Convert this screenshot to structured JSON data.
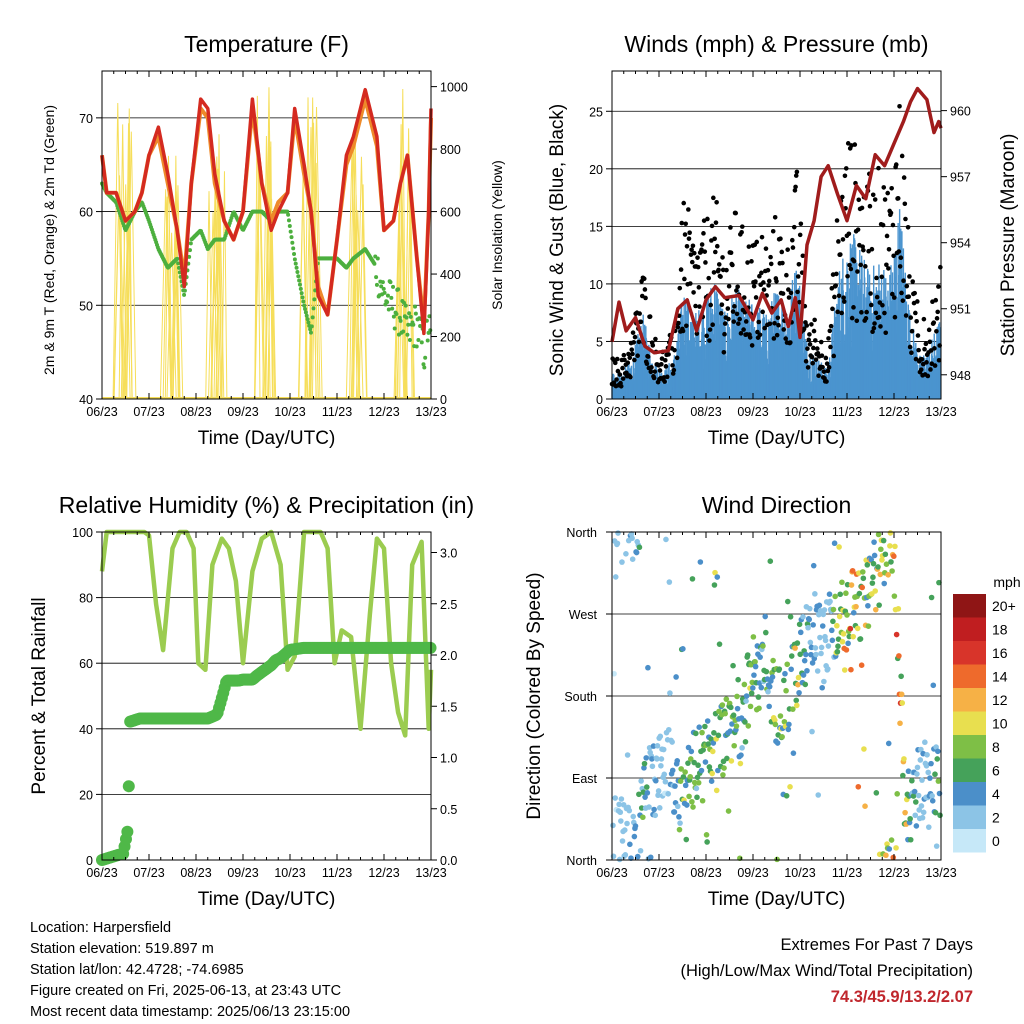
{
  "colors": {
    "temp_red": "#d42a20",
    "temp_orange": "#ee8a2a",
    "dewpoint_green": "#4caf3e",
    "insolation_yellow": "#f6de5a",
    "wind_blue": "#4b94cf",
    "gust_black": "#000000",
    "pressure_maroon": "#a01c1c",
    "rh_lightgreen": "#9bcc50",
    "precip_green": "#4fb848",
    "extremes_red": "#c0272d"
  },
  "chart_data": [
    {
      "id": "temperature",
      "type": "line",
      "title": "Temperature (F)",
      "xlabel": "Time (Day/UTC)",
      "ylabel": "2m & 9m T (Red, Orange) & 2m Td (Green)",
      "y2label": "Solar Insolation (Yellow)",
      "xticks": [
        "06/23",
        "07/23",
        "08/23",
        "09/23",
        "10/23",
        "11/23",
        "12/23",
        "13/23"
      ],
      "ylim": [
        40,
        75
      ],
      "yticks": [
        "40",
        "50",
        "60",
        "70"
      ],
      "y2lim": [
        0,
        1050
      ],
      "y2ticks": [
        "0",
        "200",
        "400",
        "600",
        "800",
        "1000"
      ],
      "x": [
        0,
        0.1,
        0.3,
        0.5,
        0.7,
        0.85,
        1.0,
        1.2,
        1.4,
        1.6,
        1.75,
        1.9,
        2.1,
        2.25,
        2.4,
        2.6,
        2.8,
        3.0,
        3.2,
        3.4,
        3.6,
        3.75,
        3.95,
        4.1,
        4.3,
        4.45,
        4.6,
        4.8,
        5.0,
        5.2,
        5.35,
        5.6,
        5.85,
        6.0,
        6.2,
        6.35,
        6.5,
        6.7,
        6.85,
        6.95,
        7.0
      ],
      "series": [
        {
          "name": "2m T",
          "values": [
            66,
            62,
            62,
            59,
            60,
            62,
            66,
            69,
            64,
            58,
            52,
            63,
            72,
            71,
            64,
            59,
            57,
            60,
            72,
            63,
            58,
            60,
            62,
            71,
            65,
            60,
            51,
            49,
            57,
            66,
            68,
            73,
            68,
            58,
            59,
            63,
            66,
            55,
            47,
            60,
            71
          ]
        },
        {
          "name": "9m T",
          "values": [
            66,
            62,
            62,
            59,
            60,
            62,
            66,
            68,
            63,
            58,
            53,
            63,
            71,
            70,
            63,
            59,
            57,
            60,
            71,
            63,
            59,
            61,
            62,
            70,
            64,
            60,
            52,
            49,
            57,
            65,
            67,
            72,
            67,
            58,
            59,
            63,
            66,
            55,
            48,
            60,
            70
          ]
        },
        {
          "name": "2m Td",
          "values": [
            63,
            62,
            61,
            58,
            60,
            61,
            59,
            56,
            54,
            55,
            51,
            57,
            58,
            56,
            57,
            57,
            60,
            58,
            60,
            60,
            59,
            60,
            60,
            55,
            50,
            47,
            55,
            55,
            55,
            54,
            55,
            56,
            54,
            51,
            50,
            49,
            47,
            48,
            45,
            48,
            45
          ]
        },
        {
          "name": "Solar Insolation",
          "axis": "y2",
          "values": [
            0,
            0,
            0,
            0,
            0,
            0,
            0,
            0,
            0,
            0,
            0,
            0,
            0,
            0,
            0,
            0,
            0,
            0,
            0,
            0,
            0,
            0,
            0,
            0,
            0,
            0,
            0,
            0,
            0,
            0,
            0,
            0,
            0,
            0,
            0,
            0,
            0,
            0,
            0,
            0,
            0
          ]
        }
      ],
      "insolation_days": [
        {
          "day": 0,
          "peak": 1000
        },
        {
          "day": 1,
          "peak": 900
        },
        {
          "day": 2,
          "peak": 980
        },
        {
          "day": 3,
          "peak": 1000
        },
        {
          "day": 4,
          "peak": 1030
        },
        {
          "day": 5,
          "peak": 990
        },
        {
          "day": 6,
          "peak": 1000
        }
      ]
    },
    {
      "id": "winds",
      "type": "scatter",
      "title": "Winds (mph) & Pressure (mb)",
      "xlabel": "Time (Day/UTC)",
      "ylabel": "Sonic Wind & Gust (Blue, Black)",
      "y2label": "Station Pressure (Maroon)",
      "xticks": [
        "06/23",
        "07/23",
        "08/23",
        "09/23",
        "10/23",
        "11/23",
        "12/23",
        "13/23"
      ],
      "ylim": [
        0,
        28.5
      ],
      "yticks": [
        "0",
        "5",
        "10",
        "15",
        "20",
        "25"
      ],
      "y2lim": [
        946.9,
        961.8
      ],
      "y2ticks": [
        "948",
        "951",
        "954",
        "957",
        "960"
      ],
      "wind_level": [
        2,
        2,
        3,
        6,
        3,
        2,
        3,
        8,
        6,
        7,
        9,
        6,
        8,
        7,
        7,
        6,
        8,
        7,
        10,
        4,
        3,
        2,
        9,
        12,
        11,
        9,
        10,
        9,
        14,
        6,
        3,
        4,
        6
      ],
      "gust_level": [
        3,
        3,
        5,
        10,
        5,
        3,
        5,
        15,
        12,
        13,
        15,
        11,
        14,
        12,
        12,
        10,
        14,
        11,
        17,
        6,
        5,
        4,
        15,
        20,
        18,
        15,
        17,
        16,
        23,
        10,
        5,
        6,
        9
      ],
      "pressure": {
        "x": [
          0,
          0.15,
          0.3,
          0.5,
          0.7,
          0.9,
          1.2,
          1.4,
          1.6,
          1.8,
          2.0,
          2.2,
          2.4,
          2.7,
          3.0,
          3.2,
          3.4,
          3.6,
          3.75,
          3.9,
          4.0,
          4.15,
          4.3,
          4.45,
          4.6,
          4.8,
          5.0,
          5.2,
          5.4,
          5.6,
          5.8,
          6.0,
          6.2,
          6.35,
          6.5,
          6.7,
          6.85,
          6.95,
          7.0
        ],
        "values": [
          949.5,
          951.3,
          950.0,
          950.6,
          949.3,
          949.0,
          949.1,
          951.0,
          951.4,
          950.0,
          951.4,
          952.0,
          951.5,
          951.6,
          950.5,
          951.7,
          950.8,
          951.4,
          950.2,
          951.5,
          949.7,
          953.9,
          955.0,
          957.0,
          957.5,
          956.2,
          955.0,
          956.6,
          956.0,
          958.0,
          957.5,
          958.5,
          959.5,
          960.4,
          961.0,
          960.5,
          959.0,
          959.5,
          959.2
        ]
      }
    },
    {
      "id": "humidity",
      "type": "line",
      "title": "Relative Humidity (%) & Precipitation (in)",
      "xlabel": "Time (Day/UTC)",
      "ylabel": "Percent & Total Rainfall",
      "xticks": [
        "06/23",
        "07/23",
        "08/23",
        "09/23",
        "10/23",
        "11/23",
        "12/23",
        "13/23"
      ],
      "ylim": [
        0,
        100
      ],
      "yticks": [
        "0",
        "20",
        "40",
        "60",
        "80",
        "100"
      ],
      "y2lim": [
        0,
        3.2
      ],
      "y2ticks": [
        "0.0",
        "0.5",
        "1.0",
        "1.5",
        "2.0",
        "2.5",
        "3.0"
      ],
      "series": [
        {
          "name": "Relative Humidity",
          "x": [
            0,
            0.1,
            0.4,
            0.7,
            0.9,
            1.0,
            1.15,
            1.3,
            1.5,
            1.65,
            1.8,
            1.95,
            2.05,
            2.2,
            2.35,
            2.55,
            2.7,
            2.85,
            3.0,
            3.2,
            3.4,
            3.6,
            3.8,
            3.95,
            4.1,
            4.3,
            4.5,
            4.65,
            4.8,
            4.95,
            5.1,
            5.3,
            5.5,
            5.7,
            5.85,
            6.0,
            6.15,
            6.3,
            6.45,
            6.6,
            6.8,
            6.95,
            7.0
          ],
          "values": [
            88,
            100,
            100,
            100,
            100,
            99,
            78,
            64,
            95,
            100,
            100,
            95,
            60,
            58,
            90,
            98,
            95,
            85,
            60,
            88,
            98,
            100,
            90,
            58,
            62,
            100,
            100,
            100,
            95,
            60,
            70,
            68,
            40,
            75,
            98,
            95,
            60,
            45,
            38,
            90,
            97,
            40,
            58
          ]
        },
        {
          "name": "Total Rainfall",
          "x": [
            0,
            0.35,
            0.45,
            0.55,
            0.6,
            0.8,
            1.4,
            2.0,
            2.25,
            2.45,
            2.55,
            2.65,
            2.9,
            3.0,
            3.2,
            3.3,
            3.45,
            3.6,
            3.7,
            3.8,
            4.0,
            4.3,
            4.6,
            5.0,
            6.0,
            7.0
          ],
          "values": [
            0.0,
            0.05,
            0.06,
            0.3,
            1.35,
            1.38,
            1.38,
            1.38,
            1.38,
            1.42,
            1.58,
            1.75,
            1.75,
            1.76,
            1.76,
            1.8,
            1.85,
            1.9,
            1.95,
            1.97,
            2.05,
            2.07,
            2.07,
            2.07,
            2.07,
            2.07
          ]
        }
      ]
    },
    {
      "id": "direction",
      "type": "scatter",
      "title": "Wind Direction",
      "xlabel": "Time (Day/UTC)",
      "ylabel": "Direction (Colored By Speed)",
      "xticks": [
        "06/23",
        "07/23",
        "08/23",
        "09/23",
        "10/23",
        "11/23",
        "12/23",
        "13/23"
      ],
      "ylim": [
        0,
        360
      ],
      "yticks": [
        "North",
        "East",
        "South",
        "West",
        "North"
      ],
      "legend_title": "mph",
      "legend_labels": [
        "0",
        "2",
        "4",
        "6",
        "8",
        "10",
        "12",
        "14",
        "16",
        "18",
        "20+"
      ],
      "legend_colors": [
        "#c6e8f8",
        "#8cc4e6",
        "#4b8fc9",
        "#45a25a",
        "#7ebf46",
        "#e8df4f",
        "#f6b146",
        "#ee6a2c",
        "#d8342a",
        "#c01e20",
        "#8f1515"
      ],
      "direction_trend": [
        30,
        20,
        10,
        80,
        90,
        100,
        60,
        100,
        110,
        120,
        140,
        160,
        200,
        210,
        170,
        180,
        220,
        250,
        240,
        260,
        270,
        280,
        300,
        330,
        340,
        50,
        80,
        100,
        90
      ]
    }
  ],
  "station": {
    "location": "Location: Harpersfield",
    "elevation": "Station elevation: 519.897 m",
    "latlon": "Station lat/lon: 42.4728; -74.6985",
    "created": "Figure created on Fri, 2025-06-13, at 23:43 UTC",
    "latest": "Most recent data timestamp: 2025/06/13 23:15:00"
  },
  "extremes": {
    "title": "Extremes For Past 7 Days",
    "subtitle": "(High/Low/Max Wind/Total Precipitation)",
    "values": "74.3/45.9/13.2/2.07"
  }
}
